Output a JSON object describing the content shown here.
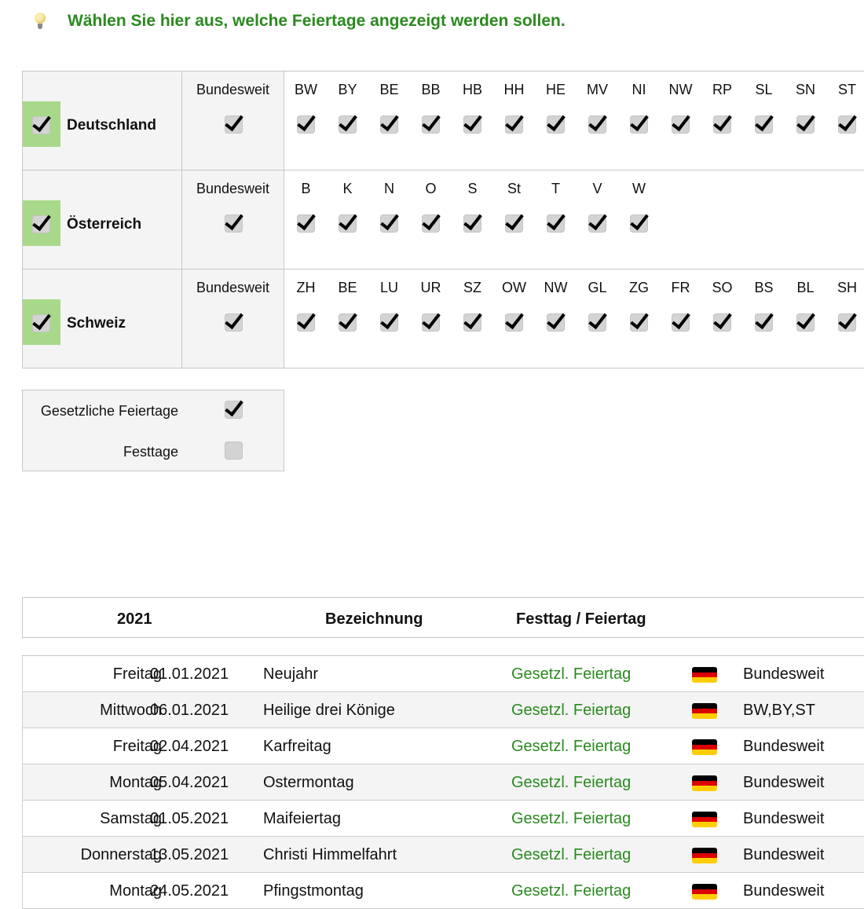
{
  "hint": {
    "icon": "lightbulb-icon",
    "text": "Wählen Sie hier aus, welche Feiertage angezeigt werden sollen."
  },
  "regions": [
    {
      "country": "Deutschland",
      "checked": true,
      "bundesweit_label": "Bundesweit",
      "bundesweit_checked": true,
      "states": [
        "BW",
        "BY",
        "BE",
        "BB",
        "HB",
        "HH",
        "HE",
        "MV",
        "NI",
        "NW",
        "RP",
        "SL",
        "SN",
        "ST"
      ]
    },
    {
      "country": "Österreich",
      "checked": true,
      "bundesweit_label": "Bundesweit",
      "bundesweit_checked": true,
      "states": [
        "B",
        "K",
        "N",
        "O",
        "S",
        "St",
        "T",
        "V",
        "W"
      ]
    },
    {
      "country": "Schweiz",
      "checked": true,
      "bundesweit_label": "Bundesweit",
      "bundesweit_checked": true,
      "states": [
        "ZH",
        "BE",
        "LU",
        "UR",
        "SZ",
        "OW",
        "NW",
        "GL",
        "ZG",
        "FR",
        "SO",
        "BS",
        "BL",
        "SH"
      ]
    }
  ],
  "options": [
    {
      "label": "Gesetzliche Feiertage",
      "checked": true
    },
    {
      "label": "Festtage",
      "checked": false
    }
  ],
  "table": {
    "headers": {
      "year": "2021",
      "name": "Bezeichnung",
      "type": "Festtag / Feiertag"
    },
    "flag_colors": [
      "#000000",
      "#dd0000",
      "#ffce00"
    ],
    "type_color": "#2a8a1f",
    "rows": [
      {
        "weekday": "Freitag",
        "date": "01.01.2021",
        "name": "Neujahr",
        "type": "Gesetzl. Feiertag",
        "flag": "germany-flag-icon",
        "region": "Bundesweit"
      },
      {
        "weekday": "Mittwoch",
        "date": "06.01.2021",
        "name": "Heilige drei Könige",
        "type": "Gesetzl. Feiertag",
        "flag": "germany-flag-icon",
        "region": "BW,BY,ST"
      },
      {
        "weekday": "Freitag",
        "date": "02.04.2021",
        "name": "Karfreitag",
        "type": "Gesetzl. Feiertag",
        "flag": "germany-flag-icon",
        "region": "Bundesweit"
      },
      {
        "weekday": "Montag",
        "date": "05.04.2021",
        "name": "Ostermontag",
        "type": "Gesetzl. Feiertag",
        "flag": "germany-flag-icon",
        "region": "Bundesweit"
      },
      {
        "weekday": "Samstag",
        "date": "01.05.2021",
        "name": "Maifeiertag",
        "type": "Gesetzl. Feiertag",
        "flag": "germany-flag-icon",
        "region": "Bundesweit"
      },
      {
        "weekday": "Donnerstag",
        "date": "13.05.2021",
        "name": "Christi Himmelfahrt",
        "type": "Gesetzl. Feiertag",
        "flag": "germany-flag-icon",
        "region": "Bundesweit"
      },
      {
        "weekday": "Montag",
        "date": "24.05.2021",
        "name": "Pfingstmontag",
        "type": "Gesetzl. Feiertag",
        "flag": "germany-flag-icon",
        "region": "Bundesweit"
      }
    ]
  }
}
